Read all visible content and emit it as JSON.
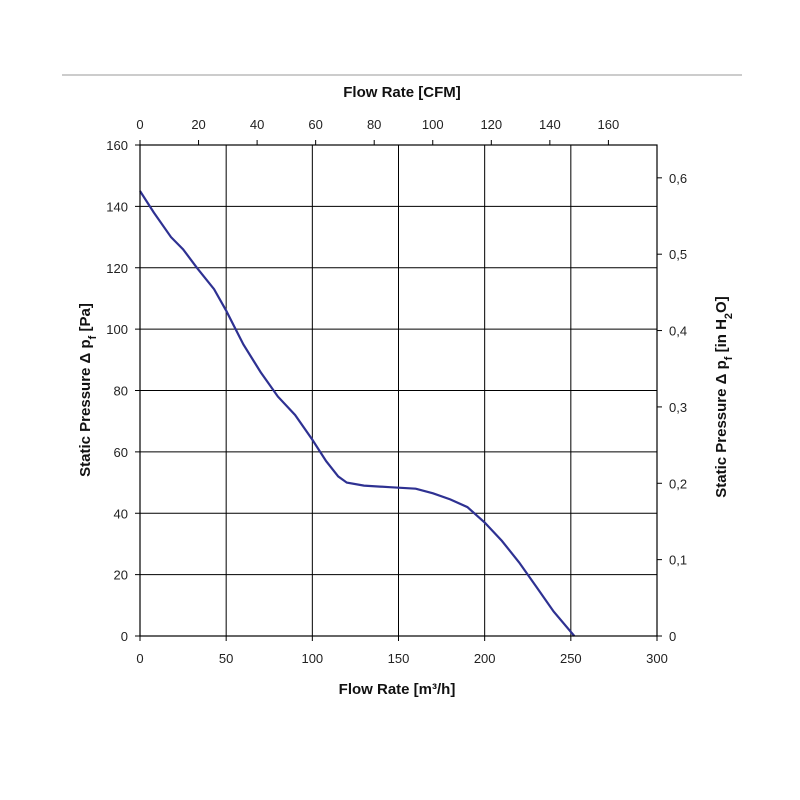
{
  "chart_data": {
    "type": "line",
    "title": "",
    "xlabel_bottom": "Flow Rate [m³/h]",
    "xlabel_top": "Flow Rate [CFM]",
    "ylabel_left": "Static Pressure Δ p_f [Pa]",
    "ylabel_right": "Static Pressure Δ p_f [in H₂O]",
    "xlim": [
      0,
      300
    ],
    "ylim": [
      0,
      160
    ],
    "x_top_lim": [
      0,
      176.6
    ],
    "y_right_lim": [
      0,
      0.643
    ],
    "x_ticks": [
      0,
      50,
      100,
      150,
      200,
      250,
      300
    ],
    "y_ticks": [
      0,
      20,
      40,
      60,
      80,
      100,
      120,
      140,
      160
    ],
    "x_top_ticks": [
      0,
      20,
      40,
      60,
      80,
      100,
      120,
      140,
      160
    ],
    "y_right_ticks": [
      0,
      0.1,
      0.2,
      0.3,
      0.4,
      0.5,
      0.6
    ],
    "y_right_tick_labels": [
      "0",
      "0,1",
      "0,2",
      "0,3",
      "0,4",
      "0,5",
      "0,6"
    ],
    "grid": true,
    "line_color": "#2e3192",
    "series": [
      {
        "x": [
          0,
          8,
          18,
          25,
          33,
          43,
          50,
          60,
          70,
          80,
          90,
          100,
          108,
          115,
          120,
          130,
          145,
          160,
          170,
          180,
          190,
          200,
          210,
          220,
          230,
          240,
          252
        ],
        "y": [
          145,
          138,
          130,
          126,
          120,
          113,
          106,
          95,
          86,
          78,
          72,
          64,
          57,
          52,
          50,
          49,
          48.5,
          48,
          46.5,
          44.5,
          42,
          37,
          31,
          24,
          16,
          8,
          0
        ]
      }
    ]
  }
}
